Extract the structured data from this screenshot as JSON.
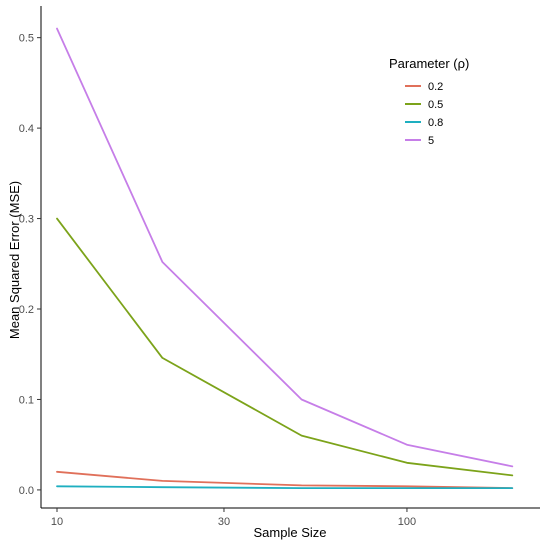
{
  "chart_data": {
    "type": "line",
    "xlabel": "Sample Size",
    "ylabel": "Mean Squared Error (MSE)",
    "x_scale": "log",
    "x": [
      10,
      20,
      50,
      100,
      200
    ],
    "x_ticks": [
      10,
      30,
      100
    ],
    "xlim": [
      9,
      240
    ],
    "y_ticks": [
      0.0,
      0.1,
      0.2,
      0.3,
      0.4,
      0.5
    ],
    "y_tick_labels": [
      "0.0",
      "0.1",
      "0.2",
      "0.3",
      "0.4",
      "0.5"
    ],
    "ylim": [
      -0.02,
      0.535
    ],
    "grid": false,
    "legend": {
      "title": "Parameter (ρ)",
      "placement": "top-right"
    },
    "series": [
      {
        "name": "0.2",
        "color": "#e0705a",
        "values": [
          0.02,
          0.01,
          0.005,
          0.004,
          0.002
        ]
      },
      {
        "name": "0.5",
        "color": "#7ca31a",
        "values": [
          0.3,
          0.146,
          0.06,
          0.03,
          0.016
        ]
      },
      {
        "name": "0.8",
        "color": "#1eafc0",
        "values": [
          0.004,
          0.003,
          0.002,
          0.002,
          0.002
        ]
      },
      {
        "name": "5",
        "color": "#c67ee8",
        "values": [
          0.51,
          0.252,
          0.1,
          0.05,
          0.026
        ]
      }
    ]
  }
}
